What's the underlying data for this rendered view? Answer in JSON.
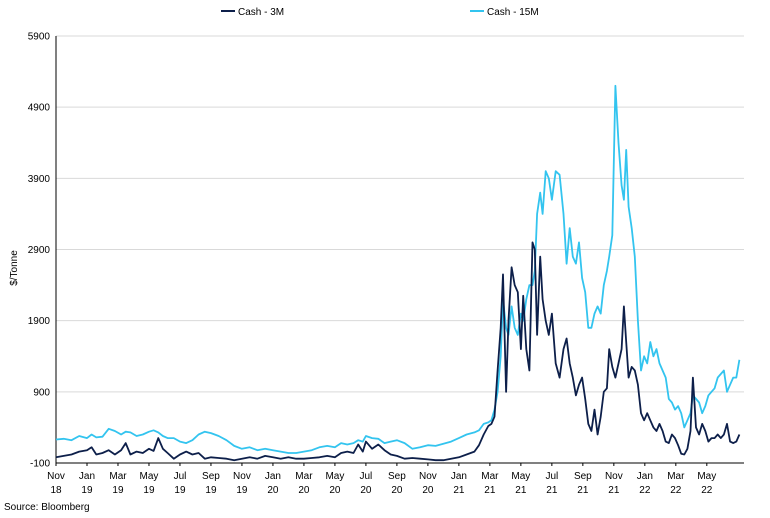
{
  "source": "Source: Bloomberg",
  "chart_data": {
    "type": "line",
    "ylabel": "$/Tonne",
    "xlabel": "",
    "ylim": [
      -100,
      5900
    ],
    "yticks": [
      -100,
      900,
      1900,
      2900,
      3900,
      4900,
      5900
    ],
    "grid": true,
    "legend": "top",
    "x_labels": [
      [
        "Nov",
        "18"
      ],
      [
        "Jan",
        "19"
      ],
      [
        "Mar",
        "19"
      ],
      [
        "May",
        "19"
      ],
      [
        "Jul",
        "19"
      ],
      [
        "Sep",
        "19"
      ],
      [
        "Nov",
        "19"
      ],
      [
        "Jan",
        "20"
      ],
      [
        "Mar",
        "20"
      ],
      [
        "May",
        "20"
      ],
      [
        "Jul",
        "20"
      ],
      [
        "Sep",
        "20"
      ],
      [
        "Nov",
        "20"
      ],
      [
        "Jan",
        "21"
      ],
      [
        "Mar",
        "21"
      ],
      [
        "May",
        "21"
      ],
      [
        "Jul",
        "21"
      ],
      [
        "Sep",
        "21"
      ],
      [
        "Nov",
        "21"
      ],
      [
        "Jan",
        "22"
      ],
      [
        "Mar",
        "22"
      ],
      [
        "May",
        "22"
      ]
    ],
    "x_index_note": "x values are months since Nov 2018",
    "series": [
      {
        "name": "Cash - 3M",
        "color": "#0d1f4a",
        "points": [
          [
            0,
            -20
          ],
          [
            0.5,
            0
          ],
          [
            1,
            20
          ],
          [
            1.5,
            60
          ],
          [
            2,
            80
          ],
          [
            2.3,
            120
          ],
          [
            2.6,
            20
          ],
          [
            3,
            40
          ],
          [
            3.4,
            80
          ],
          [
            3.8,
            20
          ],
          [
            4.2,
            80
          ],
          [
            4.5,
            180
          ],
          [
            4.8,
            20
          ],
          [
            5.2,
            60
          ],
          [
            5.6,
            40
          ],
          [
            6,
            100
          ],
          [
            6.3,
            70
          ],
          [
            6.6,
            250
          ],
          [
            6.9,
            100
          ],
          [
            7.2,
            40
          ],
          [
            7.6,
            -40
          ],
          [
            8,
            20
          ],
          [
            8.4,
            60
          ],
          [
            8.8,
            20
          ],
          [
            9.2,
            40
          ],
          [
            9.6,
            -40
          ],
          [
            10,
            -20
          ],
          [
            10.5,
            -30
          ],
          [
            11,
            -40
          ],
          [
            11.5,
            -60
          ],
          [
            12,
            -40
          ],
          [
            12.5,
            -20
          ],
          [
            13,
            -40
          ],
          [
            13.5,
            0
          ],
          [
            14,
            -20
          ],
          [
            14.5,
            -40
          ],
          [
            15,
            -20
          ],
          [
            15.5,
            -40
          ],
          [
            16,
            -40
          ],
          [
            16.5,
            -30
          ],
          [
            17,
            -20
          ],
          [
            17.5,
            0
          ],
          [
            18,
            -20
          ],
          [
            18.4,
            40
          ],
          [
            18.8,
            60
          ],
          [
            19.2,
            40
          ],
          [
            19.5,
            160
          ],
          [
            19.8,
            60
          ],
          [
            20,
            200
          ],
          [
            20.4,
            100
          ],
          [
            20.8,
            160
          ],
          [
            21.2,
            80
          ],
          [
            21.6,
            20
          ],
          [
            22,
            0
          ],
          [
            22.5,
            -40
          ],
          [
            23,
            -30
          ],
          [
            23.5,
            -40
          ],
          [
            24,
            -50
          ],
          [
            24.5,
            -60
          ],
          [
            25,
            -60
          ],
          [
            25.5,
            -40
          ],
          [
            26,
            -20
          ],
          [
            26.5,
            20
          ],
          [
            27,
            60
          ],
          [
            27.3,
            150
          ],
          [
            27.6,
            300
          ],
          [
            27.9,
            420
          ],
          [
            28.1,
            450
          ],
          [
            28.3,
            550
          ],
          [
            28.5,
            1200
          ],
          [
            28.7,
            1800
          ],
          [
            28.85,
            2550
          ],
          [
            29.05,
            900
          ],
          [
            29.2,
            1900
          ],
          [
            29.4,
            2650
          ],
          [
            29.6,
            2400
          ],
          [
            29.8,
            2300
          ],
          [
            30,
            1500
          ],
          [
            30.15,
            2250
          ],
          [
            30.35,
            1500
          ],
          [
            30.55,
            1200
          ],
          [
            30.75,
            3000
          ],
          [
            30.9,
            2900
          ],
          [
            31.05,
            1700
          ],
          [
            31.25,
            2800
          ],
          [
            31.4,
            2200
          ],
          [
            31.6,
            1900
          ],
          [
            31.8,
            1700
          ],
          [
            32,
            2000
          ],
          [
            32.25,
            1300
          ],
          [
            32.5,
            1100
          ],
          [
            32.75,
            1500
          ],
          [
            32.95,
            1650
          ],
          [
            33.15,
            1300
          ],
          [
            33.35,
            1100
          ],
          [
            33.55,
            850
          ],
          [
            33.75,
            1000
          ],
          [
            33.95,
            1100
          ],
          [
            34.15,
            800
          ],
          [
            34.35,
            450
          ],
          [
            34.55,
            350
          ],
          [
            34.75,
            650
          ],
          [
            34.95,
            300
          ],
          [
            35.15,
            550
          ],
          [
            35.35,
            900
          ],
          [
            35.55,
            950
          ],
          [
            35.7,
            1500
          ],
          [
            35.9,
            1250
          ],
          [
            36.1,
            1100
          ],
          [
            36.3,
            1300
          ],
          [
            36.5,
            1500
          ],
          [
            36.65,
            2100
          ],
          [
            36.8,
            1600
          ],
          [
            36.95,
            1100
          ],
          [
            37.15,
            1250
          ],
          [
            37.35,
            1200
          ],
          [
            37.55,
            1000
          ],
          [
            37.75,
            600
          ],
          [
            37.95,
            500
          ],
          [
            38.15,
            600
          ],
          [
            38.35,
            500
          ],
          [
            38.55,
            400
          ],
          [
            38.75,
            350
          ],
          [
            38.95,
            450
          ],
          [
            39.15,
            350
          ],
          [
            39.35,
            200
          ],
          [
            39.55,
            180
          ],
          [
            39.75,
            300
          ],
          [
            39.95,
            250
          ],
          [
            40.15,
            150
          ],
          [
            40.35,
            30
          ],
          [
            40.55,
            20
          ],
          [
            40.75,
            100
          ],
          [
            40.95,
            350
          ],
          [
            41.1,
            1100
          ],
          [
            41.3,
            400
          ],
          [
            41.5,
            300
          ],
          [
            41.7,
            450
          ],
          [
            41.9,
            350
          ],
          [
            42.1,
            200
          ],
          [
            42.3,
            250
          ],
          [
            42.5,
            250
          ],
          [
            42.7,
            300
          ],
          [
            42.9,
            250
          ],
          [
            43.1,
            300
          ],
          [
            43.3,
            450
          ],
          [
            43.5,
            200
          ],
          [
            43.7,
            180
          ],
          [
            43.9,
            200
          ],
          [
            44.1,
            300
          ]
        ]
      },
      {
        "name": "Cash - 15M",
        "color": "#33c4ef",
        "points": [
          [
            0,
            230
          ],
          [
            0.5,
            240
          ],
          [
            1,
            220
          ],
          [
            1.5,
            280
          ],
          [
            2,
            250
          ],
          [
            2.3,
            300
          ],
          [
            2.6,
            260
          ],
          [
            3,
            270
          ],
          [
            3.4,
            380
          ],
          [
            3.8,
            350
          ],
          [
            4.2,
            300
          ],
          [
            4.5,
            340
          ],
          [
            4.8,
            330
          ],
          [
            5.2,
            280
          ],
          [
            5.6,
            300
          ],
          [
            6,
            340
          ],
          [
            6.3,
            360
          ],
          [
            6.6,
            330
          ],
          [
            6.9,
            280
          ],
          [
            7.2,
            250
          ],
          [
            7.6,
            250
          ],
          [
            8,
            200
          ],
          [
            8.4,
            180
          ],
          [
            8.8,
            220
          ],
          [
            9.2,
            300
          ],
          [
            9.6,
            340
          ],
          [
            10,
            320
          ],
          [
            10.5,
            280
          ],
          [
            11,
            220
          ],
          [
            11.5,
            140
          ],
          [
            12,
            100
          ],
          [
            12.5,
            120
          ],
          [
            13,
            80
          ],
          [
            13.5,
            100
          ],
          [
            14,
            80
          ],
          [
            14.5,
            60
          ],
          [
            15,
            40
          ],
          [
            15.5,
            40
          ],
          [
            16,
            60
          ],
          [
            16.5,
            80
          ],
          [
            17,
            120
          ],
          [
            17.5,
            140
          ],
          [
            18,
            120
          ],
          [
            18.4,
            180
          ],
          [
            18.8,
            160
          ],
          [
            19.2,
            180
          ],
          [
            19.5,
            220
          ],
          [
            19.8,
            200
          ],
          [
            20,
            280
          ],
          [
            20.4,
            250
          ],
          [
            20.8,
            240
          ],
          [
            21.2,
            180
          ],
          [
            21.6,
            200
          ],
          [
            22,
            220
          ],
          [
            22.5,
            180
          ],
          [
            23,
            100
          ],
          [
            23.5,
            120
          ],
          [
            24,
            150
          ],
          [
            24.5,
            140
          ],
          [
            25,
            170
          ],
          [
            25.5,
            200
          ],
          [
            26,
            250
          ],
          [
            26.5,
            300
          ],
          [
            27,
            330
          ],
          [
            27.3,
            360
          ],
          [
            27.6,
            450
          ],
          [
            27.9,
            470
          ],
          [
            28.1,
            500
          ],
          [
            28.3,
            650
          ],
          [
            28.5,
            900
          ],
          [
            28.7,
            1400
          ],
          [
            28.85,
            2200
          ],
          [
            29.05,
            1800
          ],
          [
            29.2,
            1700
          ],
          [
            29.4,
            2100
          ],
          [
            29.6,
            1800
          ],
          [
            29.8,
            1700
          ],
          [
            30,
            2000
          ],
          [
            30.15,
            1900
          ],
          [
            30.35,
            2200
          ],
          [
            30.55,
            2400
          ],
          [
            30.75,
            2400
          ],
          [
            30.9,
            2600
          ],
          [
            31.05,
            3400
          ],
          [
            31.25,
            3700
          ],
          [
            31.4,
            3400
          ],
          [
            31.6,
            4000
          ],
          [
            31.8,
            3900
          ],
          [
            32,
            3600
          ],
          [
            32.25,
            4000
          ],
          [
            32.5,
            3950
          ],
          [
            32.75,
            3400
          ],
          [
            32.95,
            2700
          ],
          [
            33.15,
            3200
          ],
          [
            33.35,
            2800
          ],
          [
            33.55,
            2700
          ],
          [
            33.75,
            3000
          ],
          [
            33.95,
            2500
          ],
          [
            34.15,
            2300
          ],
          [
            34.35,
            1800
          ],
          [
            34.55,
            1800
          ],
          [
            34.75,
            2000
          ],
          [
            34.95,
            2100
          ],
          [
            35.15,
            2000
          ],
          [
            35.35,
            2400
          ],
          [
            35.55,
            2600
          ],
          [
            35.7,
            2800
          ],
          [
            35.9,
            3100
          ],
          [
            36.1,
            5200
          ],
          [
            36.3,
            4400
          ],
          [
            36.5,
            3800
          ],
          [
            36.65,
            3600
          ],
          [
            36.8,
            4300
          ],
          [
            36.95,
            3500
          ],
          [
            37.15,
            3200
          ],
          [
            37.35,
            2800
          ],
          [
            37.55,
            1900
          ],
          [
            37.75,
            1200
          ],
          [
            37.95,
            1400
          ],
          [
            38.15,
            1300
          ],
          [
            38.35,
            1600
          ],
          [
            38.55,
            1400
          ],
          [
            38.75,
            1500
          ],
          [
            38.95,
            1300
          ],
          [
            39.15,
            1200
          ],
          [
            39.35,
            1100
          ],
          [
            39.55,
            800
          ],
          [
            39.75,
            750
          ],
          [
            39.95,
            650
          ],
          [
            40.15,
            700
          ],
          [
            40.35,
            600
          ],
          [
            40.55,
            400
          ],
          [
            40.75,
            500
          ],
          [
            40.95,
            600
          ],
          [
            41.1,
            850
          ],
          [
            41.3,
            800
          ],
          [
            41.5,
            750
          ],
          [
            41.7,
            600
          ],
          [
            41.9,
            700
          ],
          [
            42.1,
            850
          ],
          [
            42.3,
            900
          ],
          [
            42.5,
            950
          ],
          [
            42.7,
            1100
          ],
          [
            42.9,
            1150
          ],
          [
            43.1,
            1200
          ],
          [
            43.3,
            900
          ],
          [
            43.5,
            1000
          ],
          [
            43.7,
            1100
          ],
          [
            43.9,
            1100
          ],
          [
            44.1,
            1350
          ]
        ]
      }
    ]
  }
}
